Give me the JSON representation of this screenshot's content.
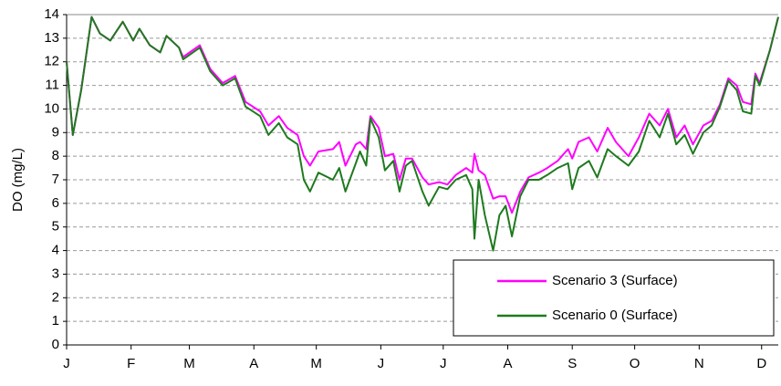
{
  "chart_data": {
    "type": "line",
    "y_label": "DO (mg/L)",
    "x": [
      0,
      3,
      7,
      12,
      16,
      21,
      27,
      32,
      35,
      40,
      45,
      48,
      54,
      56,
      64,
      69,
      75,
      81,
      86,
      93,
      97,
      102,
      106,
      111,
      114,
      117,
      121,
      128,
      131,
      134,
      139,
      141,
      144,
      146,
      150,
      153,
      157,
      160,
      163,
      166,
      171,
      174,
      179,
      183,
      187,
      192,
      195,
      196,
      198,
      201,
      205,
      208,
      211,
      214,
      218,
      222,
      227,
      231,
      236,
      241,
      243,
      246,
      251,
      255,
      260,
      264,
      270,
      275,
      280,
      285,
      289,
      293,
      297,
      301,
      306,
      310,
      314,
      318,
      322,
      325,
      329,
      331,
      333,
      338,
      342
    ],
    "series": [
      {
        "name": "Scenario 3 (Surface)",
        "color": "#ff00ff",
        "values": [
          12.0,
          8.9,
          10.8,
          13.9,
          13.2,
          12.9,
          13.7,
          12.9,
          13.4,
          12.7,
          12.4,
          13.1,
          12.6,
          12.2,
          12.7,
          11.7,
          11.1,
          11.4,
          10.3,
          9.9,
          9.3,
          9.7,
          9.2,
          8.9,
          8.0,
          7.6,
          8.2,
          8.3,
          8.6,
          7.6,
          8.5,
          8.6,
          8.3,
          9.7,
          9.2,
          8.0,
          8.1,
          7.0,
          7.9,
          7.9,
          7.1,
          6.8,
          6.9,
          6.8,
          7.2,
          7.5,
          7.3,
          8.1,
          7.4,
          7.2,
          6.2,
          6.3,
          6.3,
          5.6,
          6.5,
          7.1,
          7.3,
          7.5,
          7.8,
          8.3,
          7.9,
          8.6,
          8.8,
          8.2,
          9.2,
          8.6,
          8.0,
          8.8,
          9.8,
          9.3,
          10.0,
          8.8,
          9.3,
          8.5,
          9.3,
          9.5,
          10.2,
          11.3,
          11.0,
          10.3,
          10.2,
          11.5,
          11.1,
          12.5,
          13.9
        ]
      },
      {
        "name": "Scenario 0 (Surface)",
        "color": "#1e7a1e",
        "values": [
          12.0,
          8.9,
          10.8,
          13.9,
          13.2,
          12.9,
          13.7,
          12.9,
          13.4,
          12.7,
          12.4,
          13.1,
          12.6,
          12.1,
          12.6,
          11.6,
          11.0,
          11.3,
          10.1,
          9.7,
          8.9,
          9.4,
          8.8,
          8.5,
          7.0,
          6.5,
          7.3,
          7.0,
          7.5,
          6.5,
          7.7,
          8.2,
          7.6,
          9.6,
          8.8,
          7.4,
          7.8,
          6.5,
          7.6,
          7.8,
          6.5,
          5.9,
          6.7,
          6.6,
          7.0,
          7.2,
          6.6,
          4.5,
          7.0,
          5.5,
          4.0,
          5.5,
          5.9,
          4.6,
          6.3,
          7.0,
          7.0,
          7.2,
          7.5,
          7.7,
          6.6,
          7.5,
          7.8,
          7.1,
          8.3,
          8.0,
          7.6,
          8.2,
          9.5,
          8.8,
          9.8,
          8.5,
          8.9,
          8.1,
          9.0,
          9.3,
          10.1,
          11.2,
          10.8,
          9.9,
          9.8,
          11.4,
          11.0,
          12.5,
          13.9
        ]
      }
    ],
    "xlim": [
      0,
      342
    ],
    "xticks": [
      {
        "value": 0,
        "label": "J"
      },
      {
        "value": 31,
        "label": "F"
      },
      {
        "value": 59,
        "label": "M"
      },
      {
        "value": 90,
        "label": "A"
      },
      {
        "value": 120,
        "label": "M"
      },
      {
        "value": 151,
        "label": "J"
      },
      {
        "value": 181,
        "label": "J"
      },
      {
        "value": 212,
        "label": "A"
      },
      {
        "value": 243,
        "label": "S"
      },
      {
        "value": 273,
        "label": "O"
      },
      {
        "value": 304,
        "label": "N"
      },
      {
        "value": 334,
        "label": "D"
      }
    ],
    "ylim": [
      0,
      14
    ],
    "yticks": [
      0,
      1,
      2,
      3,
      4,
      5,
      6,
      7,
      8,
      9,
      10,
      11,
      12,
      13,
      14
    ],
    "grid": true,
    "legend": "lower right"
  }
}
